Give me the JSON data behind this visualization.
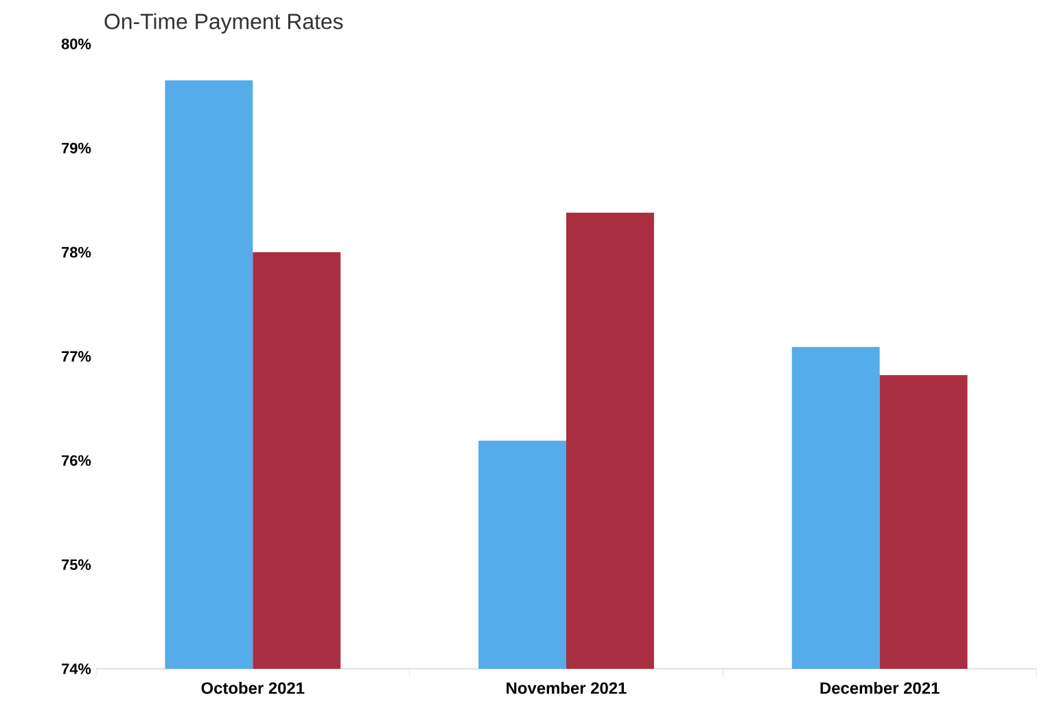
{
  "chart_data": {
    "type": "bar",
    "title": "On-Time Payment Rates",
    "categories": [
      "October 2021",
      "November 2021",
      "December 2021"
    ],
    "series": [
      {
        "color": "#56ace8",
        "values": [
          79.65,
          76.19,
          77.09
        ]
      },
      {
        "color": "#a82e40",
        "values": [
          78.0,
          78.38,
          76.82
        ]
      }
    ],
    "ylim": [
      74,
      80
    ],
    "yticks": [
      {
        "value": 74,
        "label": "74%"
      },
      {
        "value": 75,
        "label": "75%"
      },
      {
        "value": 76,
        "label": "76%"
      },
      {
        "value": 77,
        "label": "77%"
      },
      {
        "value": 78,
        "label": "78%"
      },
      {
        "value": 79,
        "label": "79%"
      },
      {
        "value": 80,
        "label": "80%"
      }
    ],
    "grid": false
  }
}
